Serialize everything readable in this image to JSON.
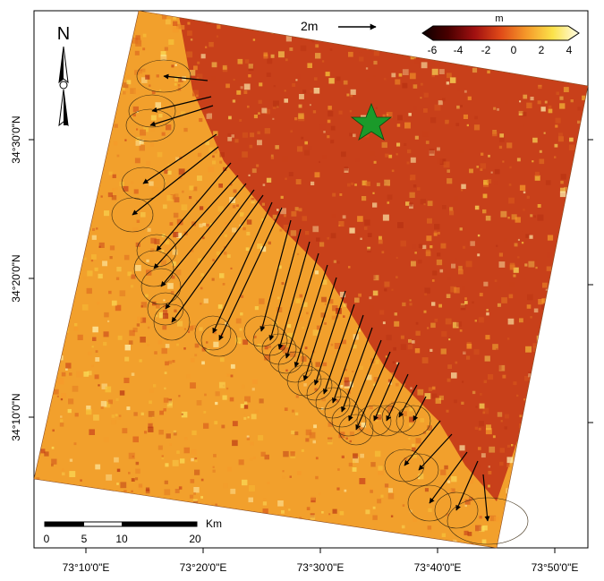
{
  "north_arrow": {
    "label": "N"
  },
  "displacement_scale": {
    "label": "2m"
  },
  "colorbar": {
    "unit": "m",
    "ticks": [
      "-6",
      "-4",
      "-2",
      "0",
      "2",
      "4"
    ],
    "colors": [
      "#0d0000",
      "#4a0000",
      "#a01010",
      "#e04a18",
      "#f59a2a",
      "#fbe24a",
      "#fffde8"
    ]
  },
  "scale_bar": {
    "unit": "Km",
    "ticks": [
      "0",
      "5",
      "10",
      "20"
    ]
  },
  "lat_labels": [
    "34°30'0\"N",
    "34°20'0\"N",
    "34°10'0\"N"
  ],
  "lon_labels": [
    "73°10'0\"E",
    "73°20'0\"E",
    "73°30'0\"E",
    "73°40'0\"E",
    "73°50'0\"E"
  ],
  "epicenter": {
    "symbol": "star-icon",
    "color": "#1a9a2a"
  },
  "map_colors": {
    "hanging_wall": "#c8401a",
    "foot_wall": "#f2a02c",
    "vector": "#000000"
  }
}
